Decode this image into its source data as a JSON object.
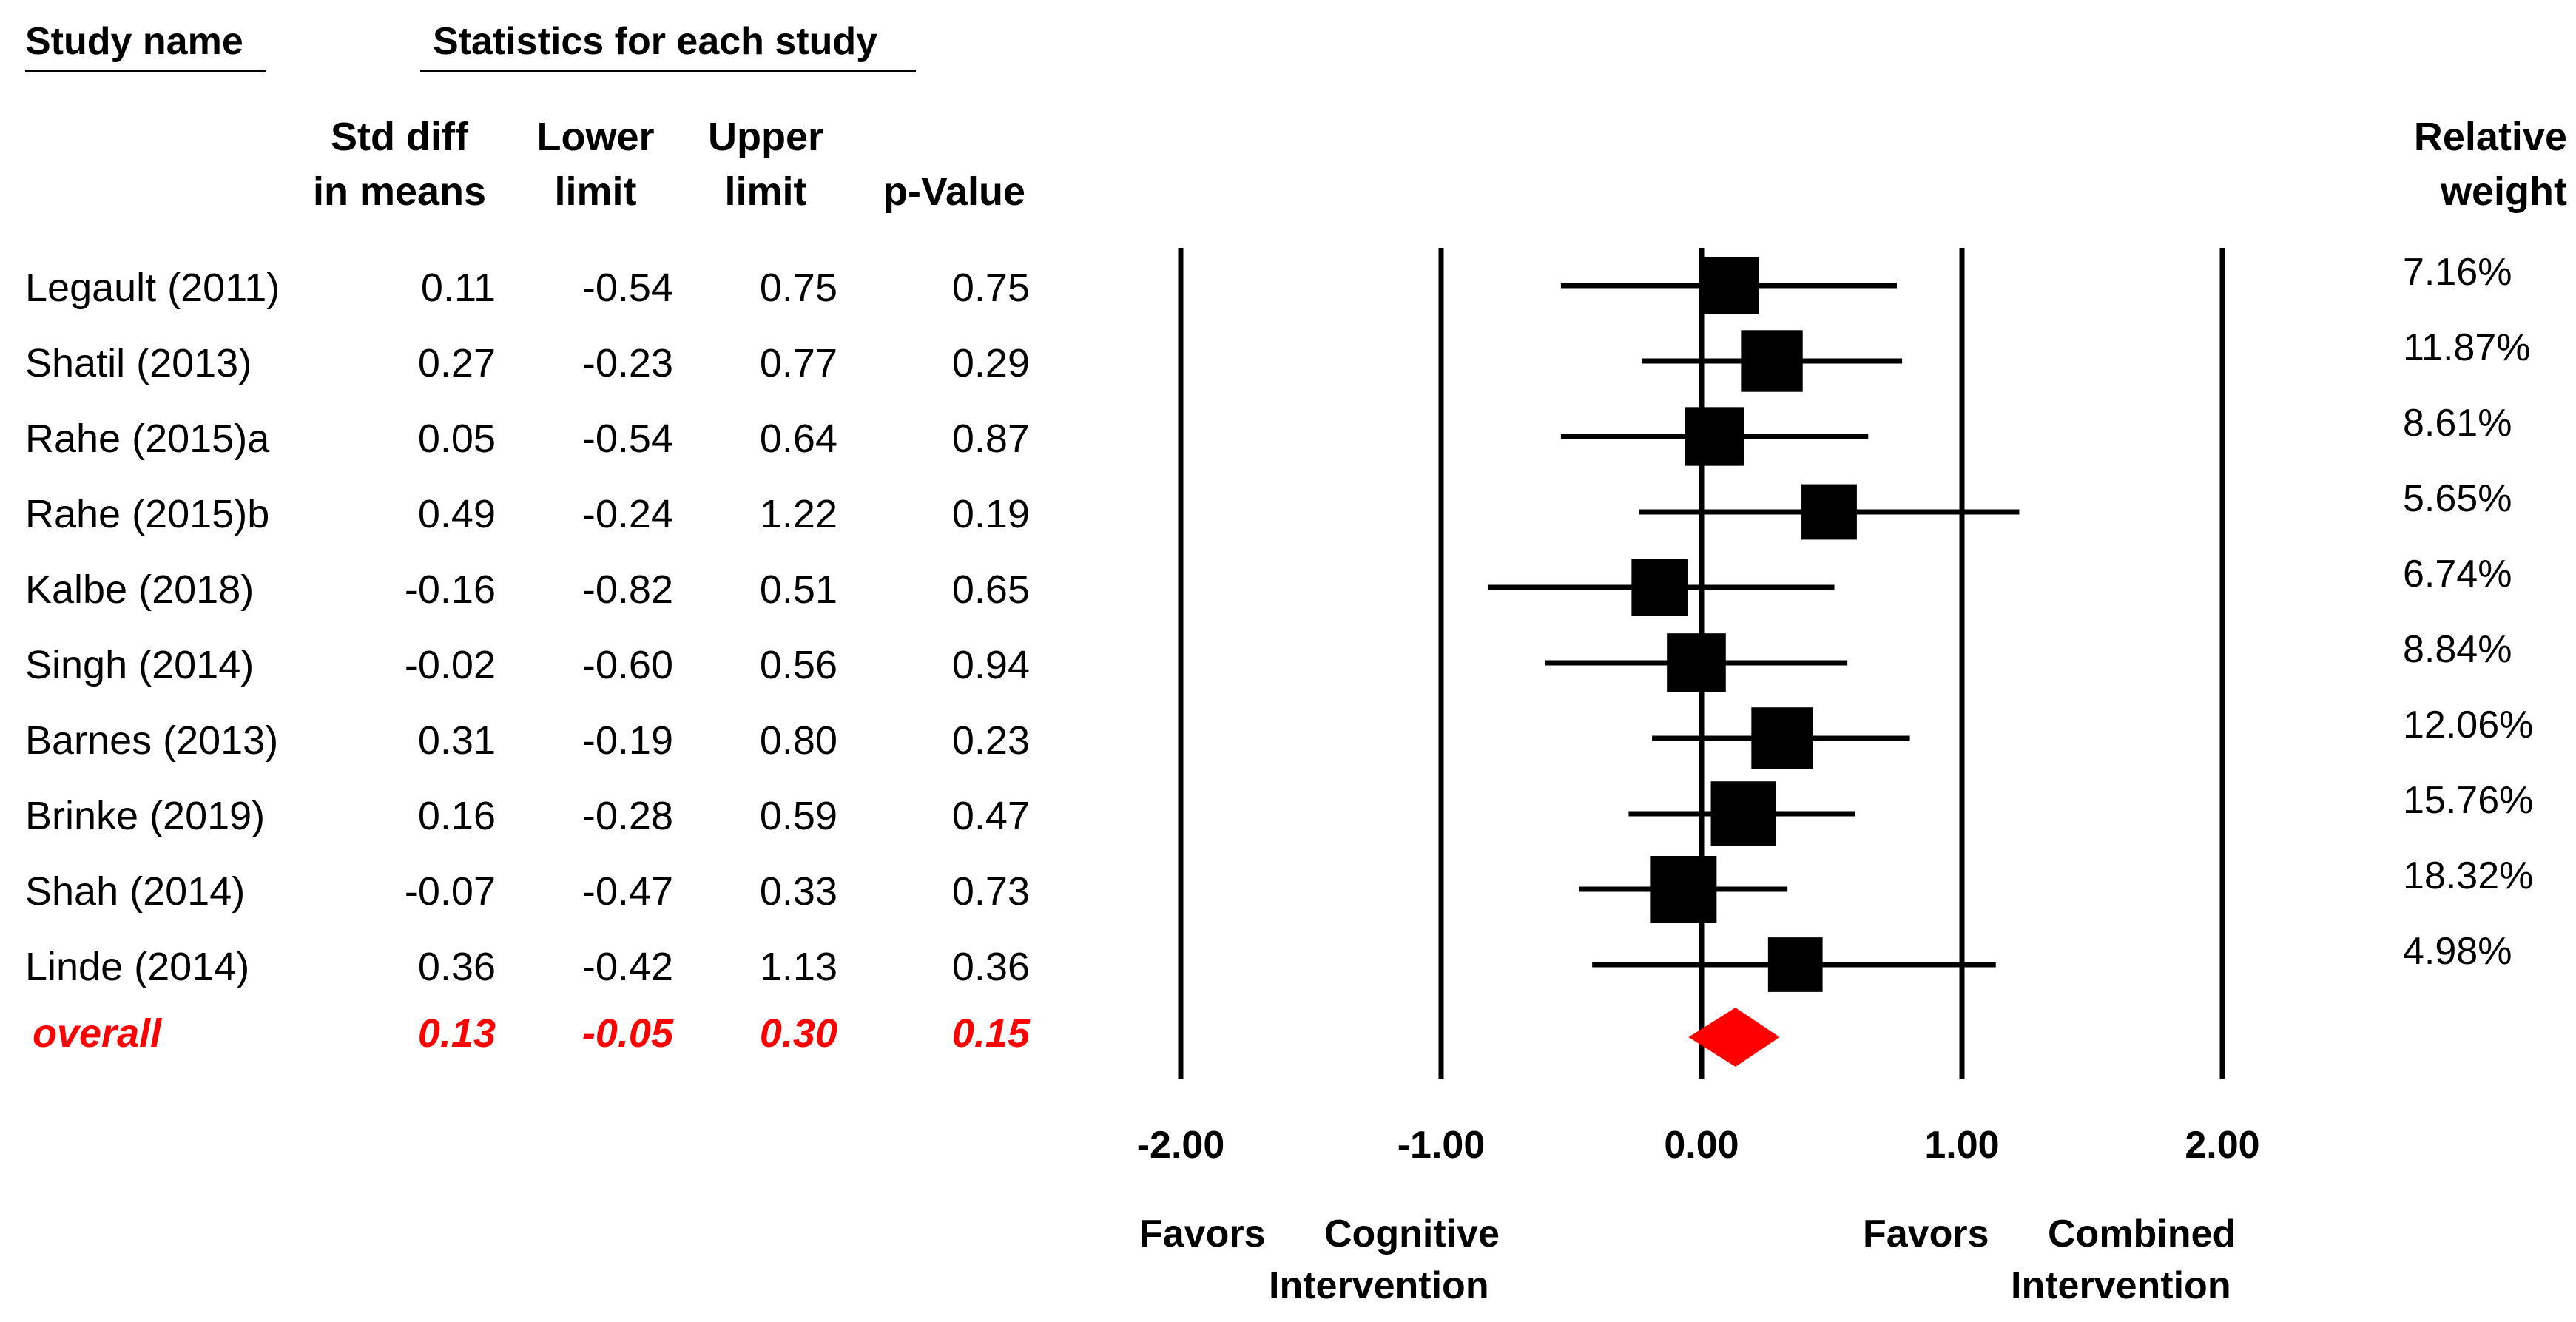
{
  "headers": {
    "study_name": "Study name",
    "statistics": "Statistics for each study",
    "std_diff_1": "Std diff",
    "std_diff_2": "in means",
    "lower_1": "Lower",
    "lower_2": "limit",
    "upper_1": "Upper",
    "upper_2": "limit",
    "pvalue": "p-Value",
    "relweight_1": "Relative",
    "relweight_2": "weight"
  },
  "chart_data": {
    "type": "forest",
    "x_axis": {
      "range": [
        -2.0,
        2.0
      ],
      "ticks": [
        -2.0,
        -1.0,
        0.0,
        1.0,
        2.0
      ],
      "tick_labels": [
        "-2.00",
        "-1.00",
        "0.00",
        "1.00",
        "2.00"
      ]
    },
    "favors_left_1": "Favors",
    "favors_left_2": "Cognitive",
    "favors_left_3": "Intervention",
    "favors_right_1": "Favors",
    "favors_right_2": "Combined",
    "favors_right_3": "Intervention",
    "studies": [
      {
        "name": "Legault (2011)",
        "smd": 0.11,
        "smd_label": "0.11",
        "lower": -0.54,
        "lower_label": "-0.54",
        "upper": 0.75,
        "upper_label": "0.75",
        "p": "0.75",
        "weight": "7.16%",
        "weight_value": 7.16
      },
      {
        "name": "Shatil (2013)",
        "smd": 0.27,
        "smd_label": "0.27",
        "lower": -0.23,
        "lower_label": "-0.23",
        "upper": 0.77,
        "upper_label": "0.77",
        "p": "0.29",
        "weight": "11.87%",
        "weight_value": 11.87
      },
      {
        "name": "Rahe (2015)a",
        "smd": 0.05,
        "smd_label": "0.05",
        "lower": -0.54,
        "lower_label": "-0.54",
        "upper": 0.64,
        "upper_label": "0.64",
        "p": "0.87",
        "weight": "8.61%",
        "weight_value": 8.61
      },
      {
        "name": "Rahe (2015)b",
        "smd": 0.49,
        "smd_label": "0.49",
        "lower": -0.24,
        "lower_label": "-0.24",
        "upper": 1.22,
        "upper_label": "1.22",
        "p": "0.19",
        "weight": "5.65%",
        "weight_value": 5.65
      },
      {
        "name": "Kalbe (2018)",
        "smd": -0.16,
        "smd_label": "-0.16",
        "lower": -0.82,
        "lower_label": "-0.82",
        "upper": 0.51,
        "upper_label": "0.51",
        "p": "0.65",
        "weight": "6.74%",
        "weight_value": 6.74
      },
      {
        "name": "Singh (2014)",
        "smd": -0.02,
        "smd_label": "-0.02",
        "lower": -0.6,
        "lower_label": "-0.60",
        "upper": 0.56,
        "upper_label": "0.56",
        "p": "0.94",
        "weight": "8.84%",
        "weight_value": 8.84
      },
      {
        "name": "Barnes (2013)",
        "smd": 0.31,
        "smd_label": "0.31",
        "lower": -0.19,
        "lower_label": "-0.19",
        "upper": 0.8,
        "upper_label": "0.80",
        "p": "0.23",
        "weight": "12.06%",
        "weight_value": 12.06
      },
      {
        "name": "Brinke (2019)",
        "smd": 0.16,
        "smd_label": "0.16",
        "lower": -0.28,
        "lower_label": "-0.28",
        "upper": 0.59,
        "upper_label": "0.59",
        "p": "0.47",
        "weight": "15.76%",
        "weight_value": 15.76
      },
      {
        "name": "Shah (2014)",
        "smd": -0.07,
        "smd_label": "-0.07",
        "lower": -0.47,
        "lower_label": "-0.47",
        "upper": 0.33,
        "upper_label": "0.33",
        "p": "0.73",
        "weight": "18.32%",
        "weight_value": 18.32
      },
      {
        "name": "Linde (2014)",
        "smd": 0.36,
        "smd_label": "0.36",
        "lower": -0.42,
        "lower_label": "-0.42",
        "upper": 1.13,
        "upper_label": "1.13",
        "p": "0.36",
        "weight": "4.98%",
        "weight_value": 4.98
      }
    ],
    "overall": {
      "name": "overall",
      "smd": 0.13,
      "smd_label": "0.13",
      "lower": -0.05,
      "lower_label": "-0.05",
      "upper": 0.3,
      "upper_label": "0.30",
      "p": "0.15"
    },
    "colors": {
      "marker": "#000000",
      "overall": "#ff0000",
      "axis": "#000000"
    }
  }
}
